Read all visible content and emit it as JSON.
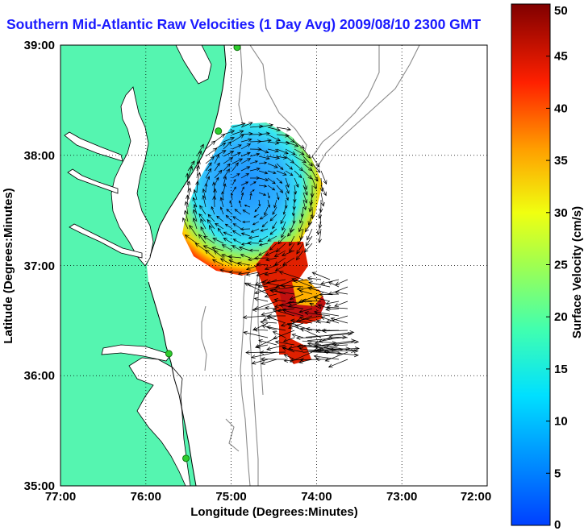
{
  "title": "Southern Mid-Atlantic Raw Velocities (1 Day Avg) 2009/08/10 2300 GMT",
  "map": {
    "xlabel": "Longitude (Degrees:Minutes)",
    "ylabel": "Latitude (Degrees:Minutes)",
    "x_ticks": [
      "77:00",
      "76:00",
      "75:00",
      "74:00",
      "73:00",
      "72:00"
    ],
    "y_ticks": [
      "39:00",
      "38:00",
      "37:00",
      "36:00",
      "35:00"
    ],
    "lon_range": [
      -77,
      -72
    ],
    "lat_range": [
      35,
      39
    ],
    "land_color": "#55f5b0",
    "ocean_color": "#ffffff",
    "station_color": "#2ecc2e",
    "stations": [
      {
        "lon": -74.93,
        "lat": 38.98
      },
      {
        "lon": -75.15,
        "lat": 38.22
      },
      {
        "lon": -75.73,
        "lat": 36.2
      },
      {
        "lon": -75.53,
        "lat": 35.25
      }
    ]
  },
  "colorbar": {
    "label": "Surface Velocity (cm/s)",
    "ticks": [
      "0",
      "5",
      "10",
      "15",
      "20",
      "25",
      "30",
      "35",
      "40",
      "45",
      "50"
    ],
    "range": [
      0,
      50
    ],
    "colormap": "jet"
  }
}
